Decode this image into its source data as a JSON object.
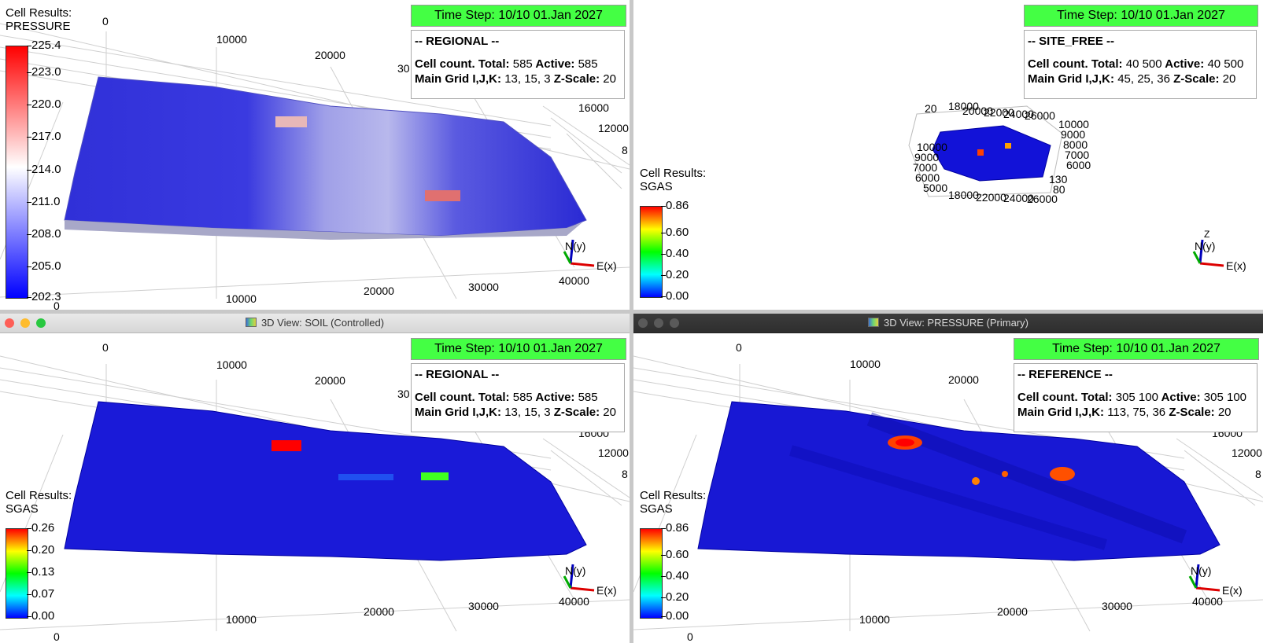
{
  "views": [
    {
      "id": "regional_pressure",
      "time_step": "Time Step: 10/10 01.Jan 2027",
      "case": "-- REGIONAL --",
      "cell_count_label": "Cell count. Total:",
      "total": "585",
      "active_label": "Active:",
      "active": "585",
      "grid_label": "Main Grid I,J,K:",
      "grid": "13, 15, 3",
      "zscale_label": "Z-Scale:",
      "zscale": "20",
      "result_title": "Cell Results:",
      "result_name": "PRESSURE",
      "legend_ticks": [
        "225.4",
        "223.0",
        "220.0",
        "217.0",
        "214.0",
        "211.0",
        "208.0",
        "205.0",
        "202.3"
      ],
      "legend_colors": [
        "#ff0000",
        "#ffffff",
        "#0000ff"
      ],
      "axis_x_ticks": [
        "0",
        "10000",
        "20000",
        "30000",
        "40000"
      ],
      "axis_top_ticks": [
        "0",
        "10000",
        "20000",
        "30"
      ],
      "axis_side_ticks": [
        "16000",
        "12000",
        "8"
      ]
    },
    {
      "id": "site_free_sgas",
      "time_step": "Time Step: 10/10 01.Jan 2027",
      "case": "-- SITE_FREE --",
      "cell_count_label": "Cell count. Total:",
      "total": "40 500",
      "active_label": "Active:",
      "active": "40 500",
      "grid_label": "Main Grid I,J,K:",
      "grid": "45, 25, 36",
      "zscale_label": "Z-Scale:",
      "zscale": "20",
      "result_title": "Cell Results:",
      "result_name": "SGAS",
      "legend_ticks": [
        "0.86",
        "0.60",
        "0.40",
        "0.20",
        "0.00"
      ],
      "legend_colors": [
        "#ff0000",
        "#ffff00",
        "#00ff00",
        "#00ffff",
        "#0000ff"
      ]
    },
    {
      "id": "regional_sgas",
      "window_title": "3D View: SOIL (Controlled)",
      "time_step": "Time Step: 10/10 01.Jan 2027",
      "case": "-- REGIONAL --",
      "cell_count_label": "Cell count. Total:",
      "total": "585",
      "active_label": "Active:",
      "active": "585",
      "grid_label": "Main Grid I,J,K:",
      "grid": "13, 15, 3",
      "zscale_label": "Z-Scale:",
      "zscale": "20",
      "result_title": "Cell Results:",
      "result_name": "SGAS",
      "legend_ticks": [
        "0.26",
        "0.20",
        "0.13",
        "0.07",
        "0.00"
      ],
      "legend_colors": [
        "#ff0000",
        "#ffff00",
        "#00ff00",
        "#00ffff",
        "#0000ff"
      ]
    },
    {
      "id": "reference_sgas",
      "window_title": "3D View: PRESSURE (Primary)",
      "time_step": "Time Step: 10/10 01.Jan 2027",
      "case": "-- REFERENCE --",
      "cell_count_label": "Cell count. Total:",
      "total": "305 100",
      "active_label": "Active:",
      "active": "305 100",
      "grid_label": "Main Grid I,J,K:",
      "grid": "113, 75, 36",
      "zscale_label": "Z-Scale:",
      "zscale": "20",
      "result_title": "Cell Results:",
      "result_name": "SGAS",
      "legend_ticks": [
        "0.86",
        "0.60",
        "0.40",
        "0.20",
        "0.00"
      ],
      "legend_colors": [
        "#ff0000",
        "#ffff00",
        "#00ff00",
        "#00ffff",
        "#0000ff"
      ]
    }
  ],
  "axis": {
    "x_label": "E(x)",
    "y_label": "N(y)",
    "z_label": "Z"
  },
  "small_view_ticks": [
    "20",
    "18000",
    "20000",
    "22000",
    "24000",
    "26000",
    "10000",
    "9000",
    "8000",
    "7000",
    "6000",
    "5000",
    "130",
    "80",
    "20",
    "18000",
    "22000",
    "24000",
    "26000",
    "10000",
    "9000",
    "8000",
    "7000",
    "6000",
    "5000"
  ],
  "icons": [
    "close-dot-icon",
    "minimize-dot-icon",
    "zoom-dot-icon",
    "app-view-icon",
    "axis-triad-icon"
  ]
}
